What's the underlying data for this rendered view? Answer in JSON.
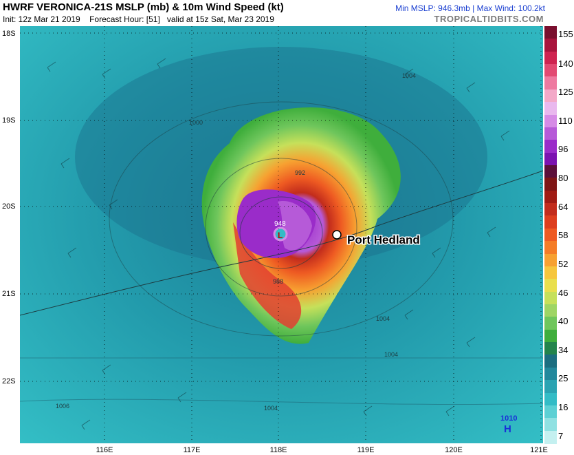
{
  "header": {
    "title": "HWRF VERONICA-21S MSLP (mb) & 10m Wind Speed (kt)",
    "init": "Init: 12z Mar 21 2019",
    "forecast_hour": "Forecast Hour: [51]",
    "valid": "valid at 15z Sat, Mar 23 2019",
    "min_max": "Min MSLP: 946.3mb | Max Wind: 100.2kt",
    "brand": "TROPICALTIDBITS.COM"
  },
  "map": {
    "lat_labels": [
      "18S",
      "19S",
      "20S",
      "21S",
      "22S"
    ],
    "lon_labels": [
      "116E",
      "117E",
      "118E",
      "119E",
      "120E",
      "121E"
    ],
    "city": "Port Hedland",
    "center_pressure": "948",
    "center_symbol": "L",
    "high_label": "1010",
    "high_symbol": "H",
    "isobars": [
      "992",
      "1000",
      "1004",
      "1004",
      "1006",
      "1004",
      "1004",
      "988"
    ]
  },
  "colorbar": {
    "labels": [
      "155",
      "140",
      "125",
      "110",
      "96",
      "80",
      "64",
      "58",
      "52",
      "46",
      "40",
      "34",
      "25",
      "16",
      "7"
    ],
    "colors": [
      "#7a0f2e",
      "#a8143c",
      "#cf2450",
      "#e24a72",
      "#ee7aa0",
      "#f3a9c8",
      "#e9b8ee",
      "#d68be6",
      "#b65ad8",
      "#9a2cc9",
      "#7b12b0",
      "#5c0f3a",
      "#7f1515",
      "#a01b14",
      "#c22c1c",
      "#dd3e1e",
      "#ee5a22",
      "#f47c27",
      "#f7a131",
      "#f6c63d",
      "#e9df4d",
      "#c6e05a",
      "#9ed564",
      "#6fc65c",
      "#3fae3c",
      "#23844c",
      "#1c6e80",
      "#23889c",
      "#2aa3b2",
      "#33bcc6",
      "#5cd0d4",
      "#8fe1e2",
      "#c4f0f0"
    ]
  }
}
